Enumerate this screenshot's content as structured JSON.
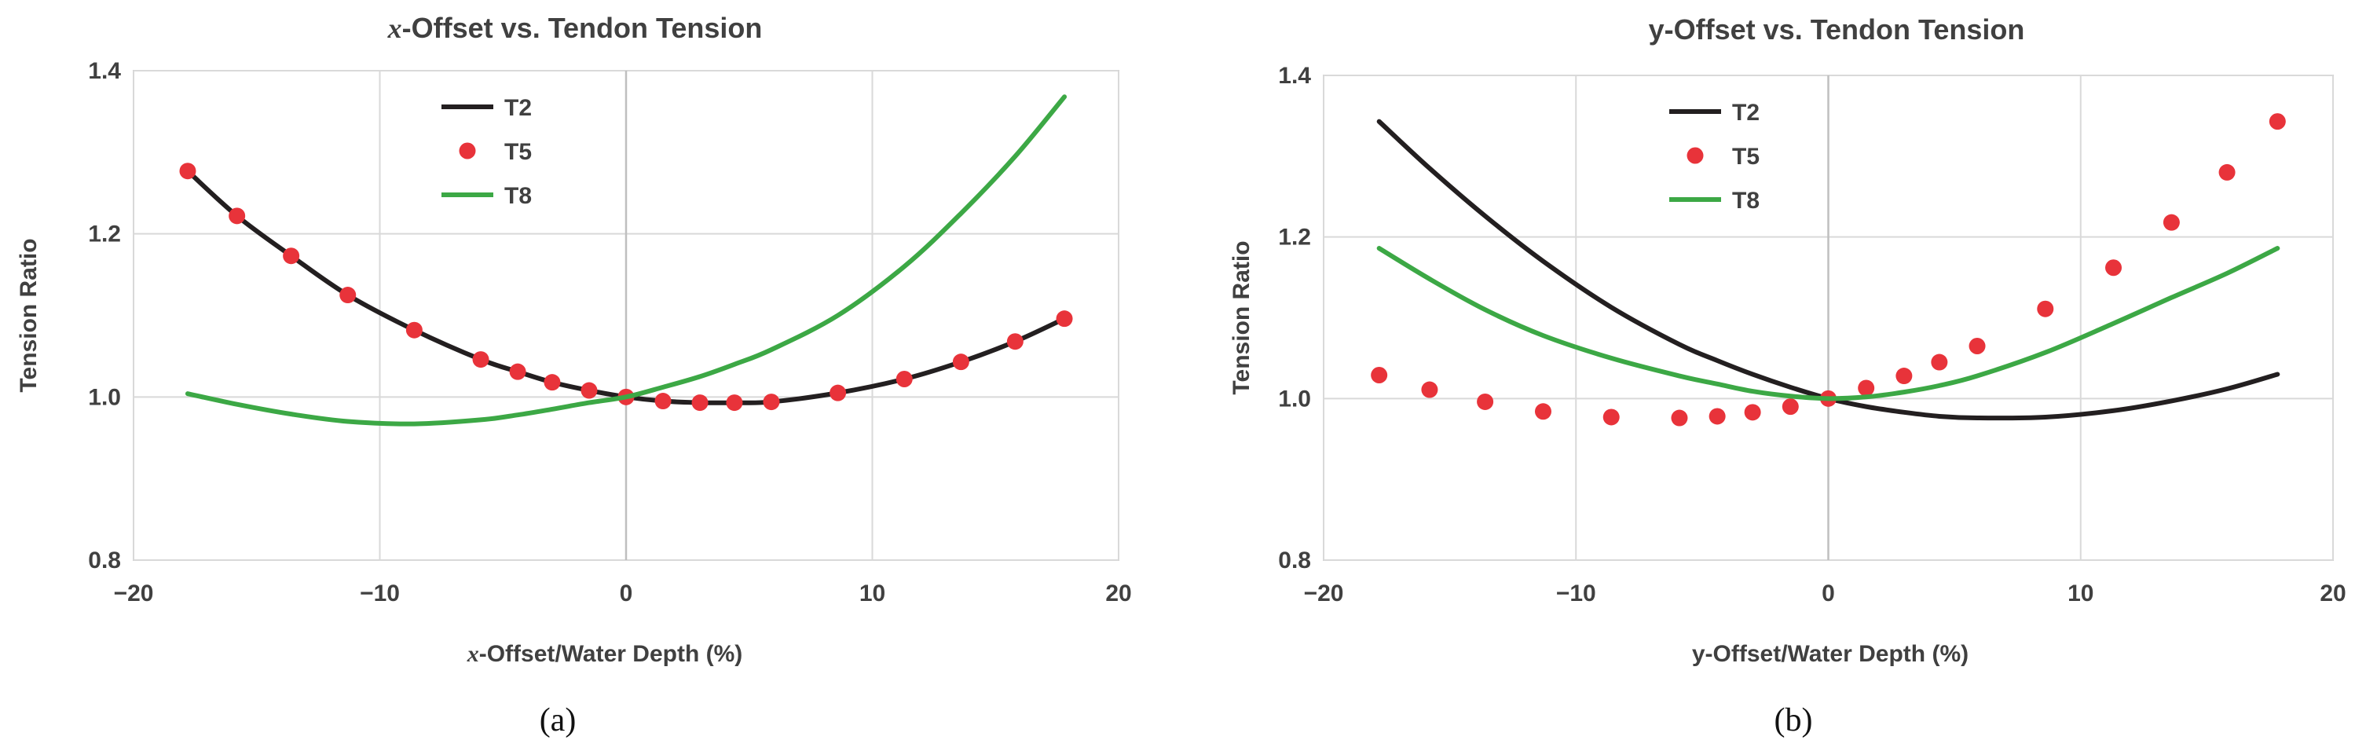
{
  "colors": {
    "T2": "#231f20",
    "T5": "#e8333a",
    "T8": "#3ca845",
    "grid": "#d9d9d9",
    "text": "#404040"
  },
  "chart_data": [
    {
      "type": "line",
      "panel": "(a)",
      "title_italic": "x",
      "title_rest": "-Offset vs. Tendon Tension",
      "xlabel_italic": "x",
      "xlabel_rest": "-Offset/Water Depth (%)",
      "ylabel": "Tension Ratio",
      "xlim": [
        -20,
        20
      ],
      "ylim": [
        0.8,
        1.4
      ],
      "xticks": [
        -20,
        -10,
        0,
        10,
        20
      ],
      "xtick_labels": [
        "−20",
        "−10",
        "0",
        "10",
        "20"
      ],
      "yticks": [
        0.8,
        1.0,
        1.2,
        1.4
      ],
      "ytick_labels": [
        "0.8",
        "1.0",
        "1.2",
        "1.4"
      ],
      "grid": true,
      "legend_position": "top-center",
      "series": [
        {
          "name": "T2",
          "style": "line",
          "x": [
            -17.8,
            -15.8,
            -13.6,
            -11.3,
            -8.6,
            -5.9,
            -4.4,
            -3.0,
            -1.5,
            0,
            1.5,
            3.0,
            4.4,
            5.9,
            8.6,
            11.3,
            13.6,
            15.8,
            17.8
          ],
          "y": [
            1.277,
            1.222,
            1.173,
            1.125,
            1.082,
            1.046,
            1.031,
            1.018,
            1.008,
            1.0,
            0.995,
            0.993,
            0.993,
            0.994,
            1.005,
            1.022,
            1.043,
            1.068,
            1.096
          ]
        },
        {
          "name": "T5",
          "style": "markers",
          "x": [
            -17.8,
            -15.8,
            -13.6,
            -11.3,
            -8.6,
            -5.9,
            -4.4,
            -3.0,
            -1.5,
            0,
            1.5,
            3.0,
            4.4,
            5.9,
            8.6,
            11.3,
            13.6,
            15.8,
            17.8
          ],
          "y": [
            1.277,
            1.222,
            1.173,
            1.125,
            1.082,
            1.046,
            1.031,
            1.018,
            1.008,
            1.0,
            0.995,
            0.993,
            0.993,
            0.994,
            1.005,
            1.022,
            1.043,
            1.068,
            1.096
          ]
        },
        {
          "name": "T8",
          "style": "line",
          "x": [
            -17.8,
            -15.8,
            -13.6,
            -11.3,
            -8.6,
            -5.9,
            -4.4,
            -3.0,
            -1.5,
            0,
            1.5,
            3.0,
            4.4,
            5.9,
            8.6,
            11.3,
            13.6,
            15.8,
            17.8
          ],
          "y": [
            1.004,
            0.991,
            0.979,
            0.97,
            0.967,
            0.972,
            0.978,
            0.985,
            0.993,
            1.0,
            1.012,
            1.025,
            1.04,
            1.058,
            1.1,
            1.16,
            1.225,
            1.295,
            1.368
          ]
        }
      ]
    },
    {
      "type": "line",
      "panel": "(b)",
      "title_italic": "",
      "title_rest": "y-Offset vs. Tendon Tension",
      "xlabel_italic": "",
      "xlabel_rest": "y-Offset/Water Depth (%)",
      "ylabel": "Tension  Ratio",
      "xlim": [
        -20,
        20
      ],
      "ylim": [
        0.8,
        1.4
      ],
      "xticks": [
        -20,
        -10,
        0,
        10,
        20
      ],
      "xtick_labels": [
        "−20",
        "−10",
        "0",
        "10",
        "20"
      ],
      "yticks": [
        0.8,
        1.0,
        1.2,
        1.4
      ],
      "ytick_labels": [
        "0.8",
        "1.0",
        "1.2",
        "1.4"
      ],
      "grid": true,
      "legend_position": "top-center",
      "series": [
        {
          "name": "T2",
          "style": "line",
          "x": [
            -17.8,
            -15.8,
            -13.6,
            -11.3,
            -8.6,
            -5.9,
            -4.4,
            -3.0,
            -1.5,
            0,
            1.5,
            3.0,
            4.4,
            5.9,
            8.6,
            11.3,
            13.6,
            15.8,
            17.8
          ],
          "y": [
            1.343,
            1.285,
            1.226,
            1.17,
            1.113,
            1.067,
            1.047,
            1.03,
            1.014,
            1.0,
            0.99,
            0.983,
            0.978,
            0.976,
            0.977,
            0.985,
            0.997,
            1.012,
            1.03
          ]
        },
        {
          "name": "T5",
          "style": "markers",
          "x": [
            -17.8,
            -15.8,
            -13.6,
            -11.3,
            -8.6,
            -5.9,
            -4.4,
            -3.0,
            -1.5,
            0,
            1.5,
            3.0,
            4.4,
            5.9,
            8.6,
            11.3,
            13.6,
            15.8,
            17.8
          ],
          "y": [
            1.029,
            1.011,
            0.996,
            0.984,
            0.977,
            0.976,
            0.978,
            0.983,
            0.99,
            1.0,
            1.013,
            1.028,
            1.045,
            1.065,
            1.111,
            1.162,
            1.218,
            1.28,
            1.343
          ]
        },
        {
          "name": "T8",
          "style": "line",
          "x": [
            -17.8,
            -15.8,
            -13.6,
            -11.3,
            -8.6,
            -5.9,
            -4.4,
            -3.0,
            -1.5,
            0,
            1.5,
            3.0,
            4.4,
            5.9,
            8.6,
            11.3,
            13.6,
            15.8,
            17.8
          ],
          "y": [
            1.186,
            1.148,
            1.11,
            1.078,
            1.05,
            1.028,
            1.018,
            1.009,
            1.003,
            1.0,
            1.002,
            1.008,
            1.016,
            1.028,
            1.057,
            1.093,
            1.125,
            1.155,
            1.186
          ]
        }
      ]
    }
  ]
}
